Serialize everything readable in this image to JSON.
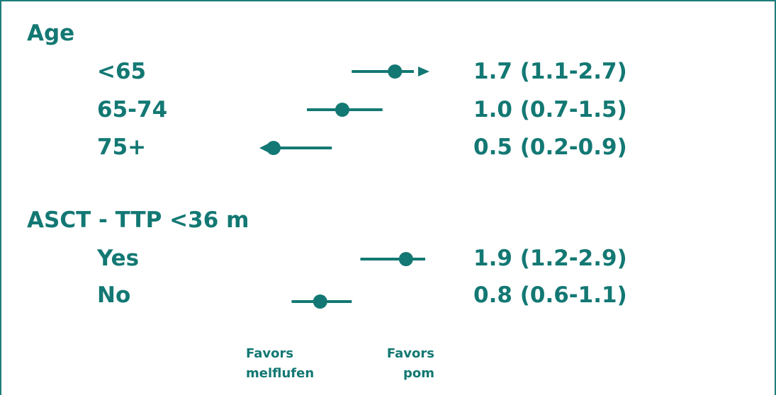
{
  "colors": {
    "accent": "#137873",
    "frame": "#1e7d7a"
  },
  "chart_data": {
    "type": "forest",
    "reference_value": 1.0,
    "scale": "log",
    "xlim": [
      0.25,
      2.8
    ],
    "groups": [
      {
        "label": "Age",
        "rows": [
          {
            "label": "<65",
            "estimate": 1.7,
            "lower": 1.1,
            "upper": 2.7,
            "text": "1.7 (1.1-2.7)",
            "upper_arrow": true,
            "lower_arrow": false
          },
          {
            "label": "65-74",
            "estimate": 1.0,
            "lower": 0.7,
            "upper": 1.5,
            "text": "1.0 (0.7-1.5)",
            "upper_arrow": false,
            "lower_arrow": false
          },
          {
            "label": "75+",
            "estimate": 0.5,
            "lower": 0.2,
            "upper": 0.9,
            "text": "0.5 (0.2-0.9)",
            "upper_arrow": false,
            "lower_arrow": true
          }
        ]
      },
      {
        "label": "ASCT - TTP <36 m",
        "rows": [
          {
            "label": "Yes",
            "estimate": 1.9,
            "lower": 1.2,
            "upper": 2.9,
            "text": "1.9 (1.2-2.9)",
            "upper_arrow": false,
            "lower_arrow": false
          },
          {
            "label": "No",
            "estimate": 0.8,
            "lower": 0.6,
            "upper": 1.1,
            "text": "0.8 (0.6-1.1)",
            "upper_arrow": false,
            "lower_arrow": false
          }
        ]
      }
    ],
    "favors_left": [
      "Favors",
      "melflufen"
    ],
    "favors_right": [
      "Favors",
      "pom"
    ]
  }
}
